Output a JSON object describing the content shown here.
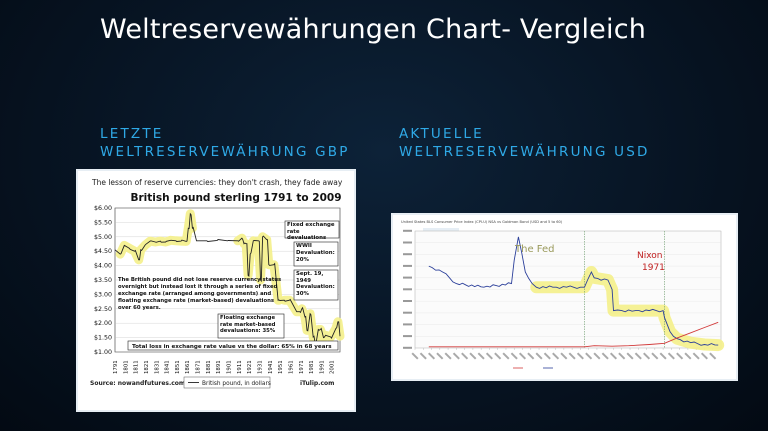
{
  "slide": {
    "title": "Weltreservewährungen Chart- Vergleich",
    "left_heading_line1": "LETZTE",
    "left_heading_line2": "WELTRESERVEWÄHRUNG GBP",
    "right_heading_line1": "AKTUELLE",
    "right_heading_line2": "WELTRESERVEWÄHRUNG USD"
  },
  "gbp_chart": {
    "caption": "The lesson of reserve currencies: they don't crash, they fade away",
    "title": "British pound sterling 1791 to 2009",
    "source": "Source: nowandfutures.com",
    "legend": "British pound, in dollars",
    "credit": "iTulip.com",
    "annotations": {
      "fixed": "Fixed exchange rate devaluations",
      "wwii": "WWII Devaluation: 20%",
      "sept": "Sept. 19, 1949 Devaluation: 30%",
      "floating": "Floating exchange rate market-based devaluations: 35%",
      "body": "The British pound did not lose reserve currency status overnight but instead lost it through a series of fixed exchange rate (arranged among governments) and floating exchange rate (market-based) devaluations over 60 years.",
      "total": "Total loss in exchange rate value vs the dollar: 65% in 68 years"
    },
    "accent_color": "#f4f08a"
  },
  "usd_chart": {
    "header_text": "United States BLS Consumer Price Index (CPI-U) NSA vs Goldman Bond (USD and 5 to 60)",
    "label_fed": "The Fed",
    "label_nixon": "Nixon",
    "label_year": "1971",
    "fed_color": "#9a9a5c",
    "nixon_color": "#c02020",
    "accent_color": "#f4f08a"
  },
  "chart_data": [
    {
      "type": "line",
      "title": "British pound sterling 1791 to 2009",
      "ylabel": "",
      "ylim": [
        1.0,
        6.0
      ],
      "yticks": [
        "$6.00",
        "$5.50",
        "$5.00",
        "$4.50",
        "$4.00",
        "$3.50",
        "$3.00",
        "$2.50",
        "$2.00",
        "$1.50",
        "$1.00"
      ],
      "xticks": [
        "1791",
        "1801",
        "1811",
        "1821",
        "1831",
        "1841",
        "1851",
        "1861",
        "1871",
        "1881",
        "1891",
        "1901",
        "1911",
        "1921",
        "1931",
        "1941",
        "1951",
        "1961",
        "1971",
        "1981",
        "1991",
        "2001"
      ],
      "series": [
        {
          "name": "British pound, in dollars",
          "x": [
            1791,
            1796,
            1800,
            1805,
            1810,
            1814,
            1816,
            1820,
            1825,
            1830,
            1835,
            1840,
            1845,
            1850,
            1855,
            1860,
            1862,
            1864,
            1866,
            1870,
            1880,
            1890,
            1900,
            1910,
            1914,
            1916,
            1918,
            1920,
            1922,
            1925,
            1930,
            1932,
            1934,
            1938,
            1940,
            1945,
            1949,
            1950,
            1955,
            1960,
            1967,
            1970,
            1972,
            1975,
            1977,
            1980,
            1983,
            1985,
            1988,
            1990,
            1993,
            1995,
            2000,
            2005,
            2007,
            2009
          ],
          "y": [
            4.55,
            4.4,
            4.7,
            4.6,
            4.5,
            4.2,
            4.55,
            4.7,
            4.85,
            4.82,
            4.85,
            4.82,
            4.88,
            4.86,
            4.85,
            4.84,
            5.3,
            5.8,
            5.3,
            4.86,
            4.86,
            4.87,
            4.86,
            4.86,
            4.95,
            4.76,
            4.76,
            3.66,
            4.4,
            4.86,
            4.86,
            3.5,
            5.0,
            4.9,
            4.03,
            4.03,
            2.8,
            2.8,
            2.8,
            2.8,
            2.4,
            2.4,
            2.5,
            2.22,
            1.75,
            2.33,
            1.52,
            1.3,
            1.78,
            1.78,
            1.5,
            1.58,
            1.52,
            1.82,
            2.05,
            1.55
          ]
        }
      ]
    },
    {
      "type": "line",
      "title": "",
      "series": [
        {
          "name": "",
          "x": [
            1800,
            1810,
            1820,
            1840,
            1860,
            1862,
            1865,
            1870,
            1875,
            1878,
            1890,
            1900,
            1910,
            1913,
            1918,
            1920,
            1930,
            1933,
            1934,
            1940,
            1950,
            1960,
            1970,
            1971,
            1975,
            1980,
            1990,
            2000,
            2010
          ],
          "y": [
            7,
            6.5,
            5.5,
            5.2,
            5.5,
            7.5,
            9.5,
            6.5,
            5.5,
            5.2,
            5.2,
            5.2,
            5.2,
            5.2,
            6.5,
            6.0,
            5.8,
            5.0,
            3.2,
            3.2,
            3.2,
            3.2,
            3.2,
            2.6,
            1.4,
            0.8,
            0.45,
            0.3,
            0.25
          ]
        },
        {
          "name": "",
          "x": [
            1800,
            1850,
            1900,
            1913,
            1920,
            1933,
            1945,
            1960,
            1971,
            1980,
            1990,
            2000,
            2010
          ],
          "y": [
            0.1,
            0.1,
            0.1,
            0.1,
            0.2,
            0.15,
            0.2,
            0.3,
            0.4,
            0.85,
            1.3,
            1.75,
            2.2
          ]
        }
      ]
    }
  ]
}
